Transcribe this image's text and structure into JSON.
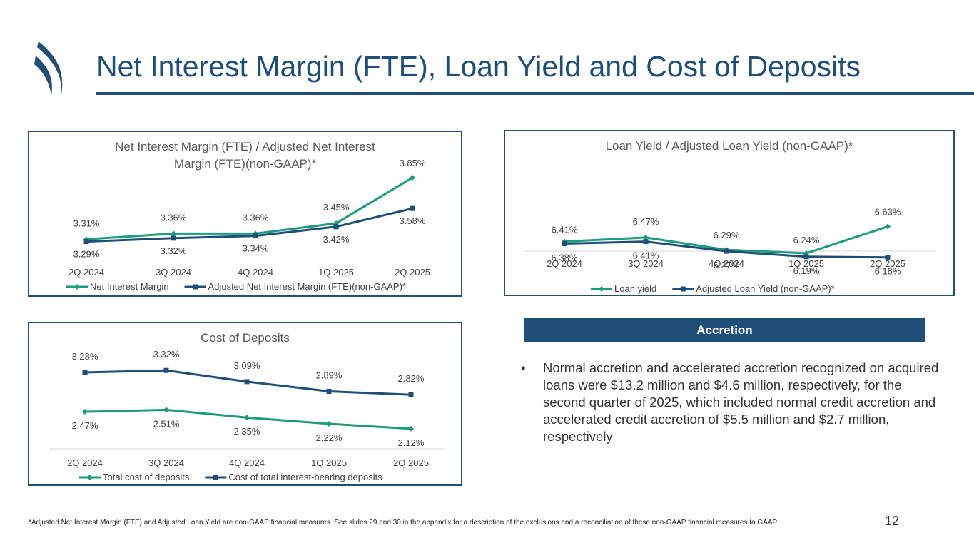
{
  "slide": {
    "title": "Net Interest Margin (FTE), Loan Yield and Cost of Deposits",
    "page_number": "12",
    "accretion_heading": "Accretion",
    "bullet_symbol": "•",
    "bullet_text": "Normal accretion and accelerated accretion recognized on acquired loans were $13.2 million and $4.6 million, respectively, for the second quarter of 2025, which included normal credit accretion and accelerated credit accretion of $5.5 million and $2.7 million, respectively",
    "footnote_lead": "*Adjusted Net Interest Margin (FTE) and Adjusted Loan Yield are non-GAAP financial measures.",
    "footnote_rest": "See slides 29 and 30 in the appendix for a description of the exclusions and a reconciliation of these non-GAAP financial measures to GAAP."
  },
  "colors": {
    "teal": "#1b9c7d",
    "navy": "#1f4e79",
    "title": "#1e4f7c"
  },
  "chart_data": [
    {
      "id": "nim",
      "type": "line",
      "title_lines": [
        "Net Interest Margin (FTE) / Adjusted Net Interest",
        "Margin (FTE)(non-GAAP)*"
      ],
      "categories": [
        "2Q 2024",
        "3Q 2024",
        "4Q 2024",
        "1Q 2025",
        "2Q 2025"
      ],
      "series": [
        {
          "name": "Net Interest Margin",
          "values": [
            3.31,
            3.36,
            3.36,
            3.45,
            3.85
          ],
          "labels": [
            "3.31%",
            "3.36%",
            "3.36%",
            "3.45%",
            "3.85%"
          ],
          "marker": "diamond"
        },
        {
          "name": "Adjusted Net Interest Margin (FTE)(non-GAAP)*",
          "values": [
            3.29,
            3.32,
            3.34,
            3.42,
            3.58
          ],
          "labels": [
            "3.29%",
            "3.32%",
            "3.34%",
            "3.42%",
            "3.58%"
          ],
          "marker": "square"
        }
      ],
      "ylim": [
        3.0,
        4.0
      ],
      "legend": "bottom"
    },
    {
      "id": "loan",
      "type": "line",
      "title_lines": [
        "Loan Yield / Adjusted Loan Yield (non-GAAP)*"
      ],
      "categories": [
        "2Q 2024",
        "3Q 2024",
        "4Q 2024",
        "1Q 2025",
        "2Q 2025"
      ],
      "series": [
        {
          "name": "Loan yield",
          "values": [
            6.41,
            6.47,
            6.29,
            6.24,
            6.63
          ],
          "labels": [
            "6.41%",
            "6.47%",
            "6.29%",
            "6.24%",
            "6.63%"
          ],
          "marker": "diamond"
        },
        {
          "name": "Adjusted Loan Yield (non-GAAP)*",
          "values": [
            6.38,
            6.41,
            6.27,
            6.19,
            6.18
          ],
          "labels": [
            "6.38%",
            "6.41%",
            "6.27%",
            "6.19%",
            "6.18%"
          ],
          "marker": "square"
        }
      ],
      "ylim": [
        5.0,
        7.5
      ],
      "legend": "bottom"
    },
    {
      "id": "deposits",
      "type": "line",
      "title_lines": [
        "Cost of Deposits"
      ],
      "categories": [
        "2Q 2024",
        "3Q 2024",
        "4Q 2024",
        "1Q 2025",
        "2Q 2025"
      ],
      "series": [
        {
          "name": "Total cost of deposits",
          "values": [
            2.47,
            2.51,
            2.35,
            2.22,
            2.12
          ],
          "labels": [
            "2.47%",
            "2.51%",
            "2.35%",
            "2.22%",
            "2.12%"
          ],
          "marker": "diamond"
        },
        {
          "name": "Cost of total interest-bearing deposits",
          "values": [
            3.28,
            3.32,
            3.09,
            2.89,
            2.82
          ],
          "labels": [
            "3.28%",
            "3.32%",
            "3.09%",
            "2.89%",
            "2.82%"
          ],
          "marker": "square"
        }
      ],
      "ylim": [
        0.0,
        4.0
      ],
      "legend": "bottom"
    }
  ]
}
